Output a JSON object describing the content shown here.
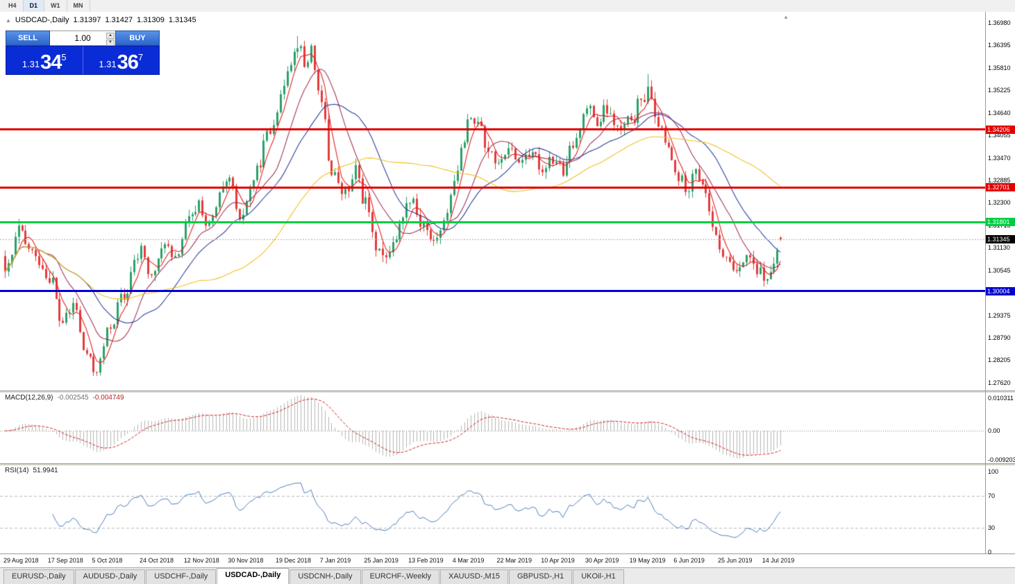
{
  "toolbar": {
    "timeframes": [
      "H4",
      "D1",
      "W1",
      "MN"
    ],
    "active": "D1"
  },
  "chart": {
    "title": {
      "symbol": "USDCAD-,Daily",
      "open": "1.31397",
      "high": "1.31427",
      "low": "1.31309",
      "close": "1.31345"
    },
    "one_click": {
      "sell_label": "SELL",
      "buy_label": "BUY",
      "volume": "1.00",
      "sell_price": {
        "prefix": "1.31",
        "big": "34",
        "sup": "5"
      },
      "buy_price": {
        "prefix": "1.31",
        "big": "36",
        "sup": "7"
      }
    },
    "scale": {
      "price_top": 1.37269,
      "price_bottom": 1.2742
    },
    "price_axis_labels": [
      "1.36980",
      "1.36395",
      "1.35810",
      "1.35225",
      "1.34640",
      "1.34055",
      "1.33470",
      "1.32885",
      "1.32300",
      "1.31715",
      "1.31130",
      "1.30545",
      "1.29960",
      "1.29375",
      "1.28790",
      "1.28205",
      "1.27620"
    ],
    "levels": [
      {
        "label": "1.34206",
        "value": 1.34206,
        "color": "#e00000",
        "thickness": 3
      },
      {
        "label": "1.32701",
        "value": 1.32701,
        "color": "#e00000",
        "thickness": 3
      },
      {
        "label": "1.31801",
        "value": 1.31801,
        "color": "#00cc44",
        "thickness": 3
      },
      {
        "label": "1.30004",
        "value": 1.30004,
        "color": "#0000d0",
        "thickness": 3
      }
    ],
    "current_price": {
      "label": "1.31345",
      "value": 1.31345,
      "tag_color": "#000000",
      "line_color": "#aaaaaa"
    },
    "date_labels": [
      {
        "label": "29 Aug 2018",
        "index": 0
      },
      {
        "label": "17 Sep 2018",
        "index": 13
      },
      {
        "label": "5 Oct 2018",
        "index": 26
      },
      {
        "label": "24 Oct 2018",
        "index": 40
      },
      {
        "label": "12 Nov 2018",
        "index": 53
      },
      {
        "label": "30 Nov 2018",
        "index": 66
      },
      {
        "label": "19 Dec 2018",
        "index": 80
      },
      {
        "label": "7 Jan 2019",
        "index": 93
      },
      {
        "label": "25 Jan 2019",
        "index": 106
      },
      {
        "label": "13 Feb 2019",
        "index": 119
      },
      {
        "label": "4 Mar 2019",
        "index": 132
      },
      {
        "label": "22 Mar 2019",
        "index": 145
      },
      {
        "label": "10 Apr 2019",
        "index": 158
      },
      {
        "label": "30 Apr 2019",
        "index": 171
      },
      {
        "label": "19 May 2019",
        "index": 184
      },
      {
        "label": "6 Jun 2019",
        "index": 197
      },
      {
        "label": "25 Jun 2019",
        "index": 210
      },
      {
        "label": "14 Jul 2019",
        "index": 223
      }
    ],
    "series": {
      "count": 229,
      "seed": 42,
      "waypoints": [
        [
          0,
          1.304
        ],
        [
          4,
          1.3155
        ],
        [
          8,
          1.3098
        ],
        [
          13,
          1.304
        ],
        [
          17,
          1.2915
        ],
        [
          20,
          1.2965
        ],
        [
          24,
          1.283
        ],
        [
          27,
          1.279
        ],
        [
          30,
          1.289
        ],
        [
          34,
          1.2975
        ],
        [
          40,
          1.3105
        ],
        [
          43,
          1.3035
        ],
        [
          47,
          1.3125
        ],
        [
          50,
          1.3075
        ],
        [
          53,
          1.317
        ],
        [
          57,
          1.3225
        ],
        [
          60,
          1.3165
        ],
        [
          63,
          1.3245
        ],
        [
          66,
          1.329
        ],
        [
          69,
          1.318
        ],
        [
          73,
          1.329
        ],
        [
          77,
          1.34
        ],
        [
          80,
          1.347
        ],
        [
          83,
          1.358
        ],
        [
          86,
          1.3645
        ],
        [
          88,
          1.359
        ],
        [
          90,
          1.3625
        ],
        [
          93,
          1.348
        ],
        [
          96,
          1.331
        ],
        [
          100,
          1.325
        ],
        [
          103,
          1.331
        ],
        [
          106,
          1.323
        ],
        [
          109,
          1.312
        ],
        [
          112,
          1.3085
        ],
        [
          115,
          1.315
        ],
        [
          119,
          1.3245
        ],
        [
          123,
          1.317
        ],
        [
          126,
          1.3125
        ],
        [
          129,
          1.3175
        ],
        [
          132,
          1.329
        ],
        [
          136,
          1.343
        ],
        [
          139,
          1.345
        ],
        [
          142,
          1.337
        ],
        [
          145,
          1.333
        ],
        [
          148,
          1.337
        ],
        [
          151,
          1.334
        ],
        [
          154,
          1.336
        ],
        [
          158,
          1.332
        ],
        [
          161,
          1.335
        ],
        [
          164,
          1.331
        ],
        [
          167,
          1.338
        ],
        [
          171,
          1.348
        ],
        [
          174,
          1.344
        ],
        [
          177,
          1.347
        ],
        [
          180,
          1.342
        ],
        [
          184,
          1.344
        ],
        [
          187,
          1.349
        ],
        [
          189,
          1.353
        ],
        [
          191,
          1.345
        ],
        [
          194,
          1.339
        ],
        [
          197,
          1.331
        ],
        [
          200,
          1.327
        ],
        [
          203,
          1.332
        ],
        [
          206,
          1.325
        ],
        [
          209,
          1.313
        ],
        [
          212,
          1.308
        ],
        [
          215,
          1.306
        ],
        [
          218,
          1.309
        ],
        [
          221,
          1.305
        ],
        [
          224,
          1.303
        ],
        [
          226,
          1.307
        ],
        [
          228,
          1.31345
        ]
      ],
      "overrides": [
        {
          "index": 27,
          "low": 1.2782
        },
        {
          "index": 86,
          "high": 1.3664
        },
        {
          "index": 189,
          "high": 1.3565
        },
        {
          "index": 224,
          "low": 1.3018
        }
      ],
      "last": {
        "open": 1.31397,
        "high": 1.31427,
        "low": 1.31309,
        "close": 1.31345
      }
    },
    "moving_averages": [
      {
        "period": 5,
        "color": "#e02020"
      },
      {
        "period": 13,
        "color": "#a0355a"
      },
      {
        "period": 24,
        "color": "#2c3e9c"
      },
      {
        "period": 55,
        "color": "#f0c020"
      }
    ],
    "colors": {
      "up": "#29a06a",
      "down": "#e23b3b"
    }
  },
  "macd": {
    "name": "MACD(12,26,9)",
    "main_value": "-0.002545",
    "signal_value": "-0.004749",
    "axis": [
      {
        "label": "0.010311",
        "value": 0.010311
      },
      {
        "label": "0.00",
        "value": 0
      },
      {
        "label": "-0.009203",
        "value": -0.009203
      }
    ],
    "range": {
      "max": 0.0122,
      "min": -0.0102
    },
    "colors": {
      "hist": "#b4b4b4",
      "signal": "#d02020"
    }
  },
  "rsi": {
    "name": "RSI(14)",
    "value": "51.9941",
    "axis": [
      {
        "label": "100",
        "value": 100
      },
      {
        "label": "70",
        "value": 70
      },
      {
        "label": "30",
        "value": 30
      },
      {
        "label": "0",
        "value": 0
      }
    ],
    "dashed_levels": [
      70,
      30
    ],
    "color": "#4a7ebb"
  },
  "tabs": {
    "items": [
      "EURUSD-,Daily",
      "AUDUSD-,Daily",
      "USDCHF-,Daily",
      "USDCAD-,Daily",
      "USDCNH-,Daily",
      "EURCHF-,Weekly",
      "XAUUSD-,M15",
      "GBPUSD-,H1",
      "UKOil-,H1"
    ],
    "active": "USDCAD-,Daily"
  }
}
